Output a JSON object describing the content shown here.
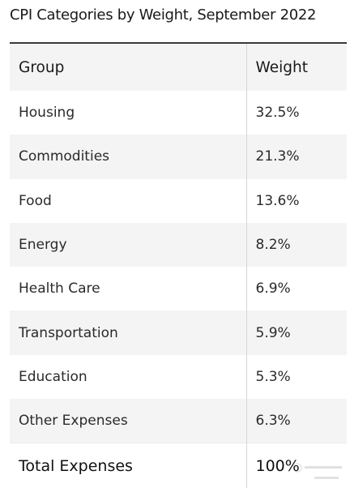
{
  "chart_data": {
    "type": "table",
    "title": "CPI Categories by Weight, September 2022",
    "columns": [
      "Group",
      "Weight"
    ],
    "rows": [
      {
        "group": "Housing",
        "weight": "32.5%"
      },
      {
        "group": "Commodities",
        "weight": "21.3%"
      },
      {
        "group": "Food",
        "weight": "13.6%"
      },
      {
        "group": "Energy",
        "weight": "8.2%"
      },
      {
        "group": "Health Care",
        "weight": "6.9%"
      },
      {
        "group": "Transportation",
        "weight": "5.9%"
      },
      {
        "group": "Education",
        "weight": "5.3%"
      },
      {
        "group": "Other Expenses",
        "weight": "6.3%"
      }
    ],
    "total": {
      "group": "Total Expenses",
      "weight": "100%"
    },
    "colors": {
      "shade": "#f4f4f4",
      "rule": "#3a3a3a",
      "divider": "#d6d6d6"
    }
  }
}
